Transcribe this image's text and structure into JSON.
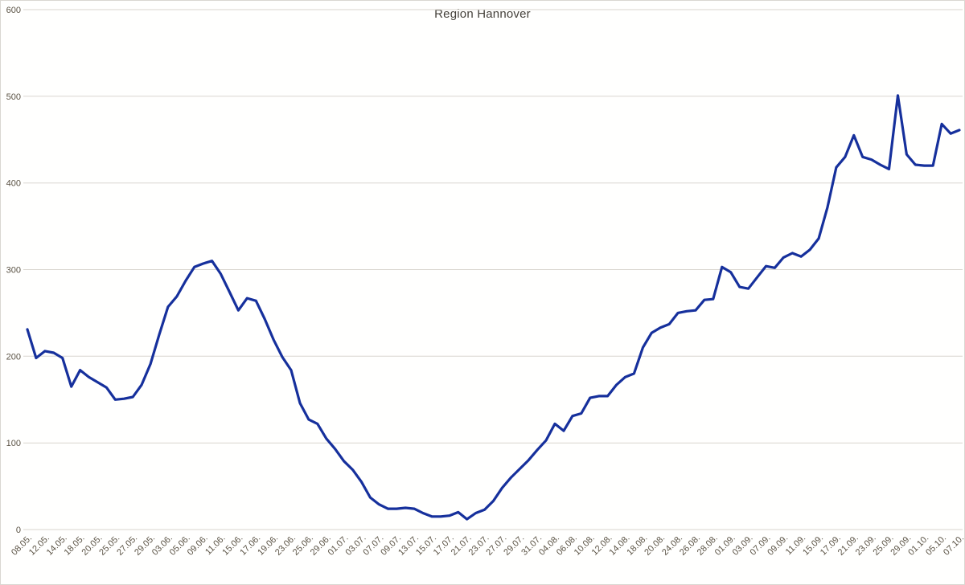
{
  "window": {
    "background_color": "#ffffff",
    "border_color": "#d9d7d2"
  },
  "chart_data": {
    "type": "line",
    "title": "Region Hannover",
    "xlabel": "",
    "ylabel": "",
    "ylim": [
      0,
      600
    ],
    "yticks": [
      0,
      100,
      200,
      300,
      400,
      500,
      600
    ],
    "grid": "horizontal",
    "legend": "none",
    "gridline_color": "#d9d6cf",
    "axis_label_color": "#5a5244",
    "title_color": "#44403a",
    "note": "categories label every 2nd data point of the series (ticks shown for even indices)",
    "categories": [
      "08.05.",
      "12.05.",
      "14.05.",
      "18.05.",
      "20.05.",
      "25.05.",
      "27.05.",
      "29.05.",
      "03.06.",
      "05.06.",
      "09.06.",
      "11.06.",
      "15.06.",
      "17.06.",
      "19.06.",
      "23.06.",
      "25.06.",
      "29.06.",
      "01.07.",
      "03.07.",
      "07.07.",
      "09.07.",
      "13.07.",
      "15.07.",
      "17.07.",
      "21.07.",
      "23.07.",
      "27.07.",
      "29.07.",
      "31.07.",
      "04.08.",
      "06.08.",
      "10.08.",
      "12.08.",
      "14.08.",
      "18.08.",
      "20.08.",
      "24.08.",
      "26.08.",
      "28.08.",
      "01.09.",
      "03.09.",
      "07.09.",
      "09.09.",
      "11.09.",
      "15.09.",
      "17.09.",
      "21.09.",
      "23.09.",
      "25.09.",
      "29.09.",
      "01.10.",
      "05.10.",
      "07.10."
    ],
    "label_every_nth_point": 2,
    "series": [
      {
        "name": "Region Hannover",
        "color": "#16309c",
        "values": [
          231,
          198,
          206,
          204,
          198,
          165,
          184,
          176,
          170,
          164,
          150,
          151,
          153,
          167,
          191,
          225,
          257,
          269,
          287,
          303,
          307,
          310,
          295,
          274,
          253,
          267,
          264,
          243,
          219,
          199,
          184,
          146,
          127,
          122,
          105,
          93,
          79,
          69,
          55,
          37,
          29,
          24,
          24,
          25,
          24,
          19,
          15,
          15,
          16,
          20,
          12,
          19,
          23,
          33,
          48,
          60,
          70,
          80,
          92,
          103,
          122,
          114,
          131,
          134,
          152,
          154,
          154,
          167,
          176,
          180,
          210,
          227,
          233,
          237,
          250,
          252,
          253,
          265,
          266,
          303,
          297,
          280,
          278,
          291,
          304,
          302,
          314,
          319,
          315,
          323,
          336,
          372,
          418,
          430,
          455,
          430,
          427,
          421,
          416,
          501,
          433,
          421,
          420,
          420,
          468,
          457,
          461
        ]
      }
    ]
  }
}
